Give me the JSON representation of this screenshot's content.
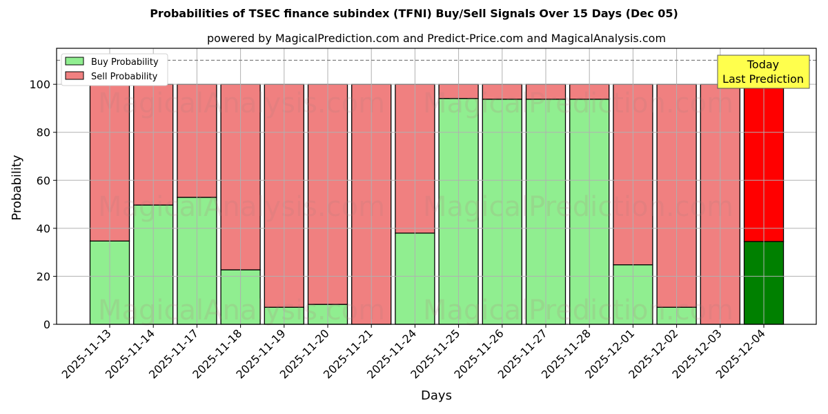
{
  "title": "Probabilities of TSEC finance subindex (TFNI) Buy/Sell Signals Over 15 Days (Dec 05)",
  "subtitle": "powered by MagicalPrediction.com and Predict-Price.com and MagicalAnalysis.com",
  "annotation": {
    "line1": "Today",
    "line2": "Last Prediction"
  },
  "watermarks": [
    "MagicalAnalysis.com",
    "MagicalPrediction.com"
  ],
  "colors": {
    "buy": "#90ee90",
    "sell": "#f08080",
    "buy_last": "#008000",
    "sell_last": "#ff0000",
    "annotation_bg": "#ffff4d"
  },
  "chart_data": {
    "type": "bar",
    "stacked": true,
    "title": "Probabilities of TSEC finance subindex (TFNI) Buy/Sell Signals Over 15 Days (Dec 05)",
    "subtitle": "powered by MagicalPrediction.com and Predict-Price.com and MagicalAnalysis.com",
    "xlabel": "Days",
    "ylabel": "Probability",
    "ylim": [
      0,
      115
    ],
    "yticks": [
      0,
      20,
      40,
      60,
      80,
      100
    ],
    "grid": true,
    "legend_position": "upper left",
    "reference_line": {
      "y": 110,
      "style": "dashed"
    },
    "categories": [
      "2025-11-13",
      "2025-11-14",
      "2025-11-17",
      "2025-11-18",
      "2025-11-19",
      "2025-11-20",
      "2025-11-21",
      "2025-11-24",
      "2025-11-25",
      "2025-11-26",
      "2025-11-27",
      "2025-11-28",
      "2025-12-01",
      "2025-12-02",
      "2025-12-03",
      "2025-12-04"
    ],
    "series": [
      {
        "name": "Buy Probability",
        "values": [
          34.7,
          49.7,
          52.9,
          22.7,
          7.1,
          8.3,
          0.0,
          38.0,
          94.1,
          93.8,
          93.8,
          93.8,
          24.8,
          7.1,
          0.0,
          34.5
        ]
      },
      {
        "name": "Sell Probability",
        "values": [
          65.3,
          50.3,
          47.1,
          77.3,
          92.9,
          91.7,
          100.0,
          62.0,
          5.9,
          6.2,
          6.2,
          6.2,
          75.2,
          92.9,
          100.0,
          65.5
        ]
      }
    ]
  }
}
